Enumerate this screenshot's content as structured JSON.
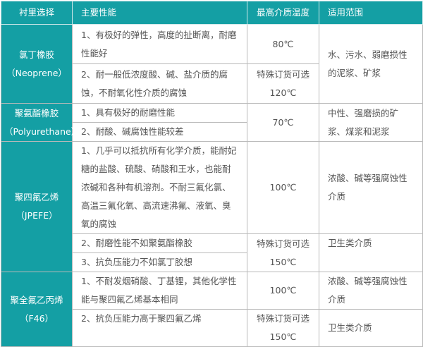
{
  "header": {
    "lining": "衬里选择",
    "properties": "主要性能",
    "max_temp": "最高介质温度",
    "application": "适用范围"
  },
  "rows": [
    {
      "name": "氯丁橡胶",
      "code": "（Neoprene）",
      "props": [
        "1、有极好的弹性，高度的扯断离，耐磨性能好",
        "2、耐一般低浓度酸、碱、盐介质的腐蚀，不耐氧化性介质的腐蚀"
      ],
      "temp1": "80℃",
      "temp2_note": "特殊订货可选",
      "temp2": "120℃",
      "app": "水、污水、弱磨损性的泥浆、矿浆"
    },
    {
      "name": "聚氨酯橡胶",
      "code": "（Polyurethane）",
      "props": [
        "1、具有极好的耐磨性能",
        "2、耐酸、碱腐蚀性能较差"
      ],
      "temp1": "70℃",
      "app": "中性、强磨损的矿浆、煤浆和泥浆"
    },
    {
      "name": "聚四氟乙烯",
      "code": "（JPEFE）",
      "props": [
        "1、几乎可以抵抗所有化学介质，能耐妃糖的盐酸、硫酸、硝酸和王水，也能耐浓碱和各种有机溶剂。不耐三氟化氯、高温三氟化氧、高流速沸氟、液氧、臭氧的腐蚀",
        "2、耐磨性能不如聚氨酯橡胶",
        "3、抗负压能力不如氯丁胶想"
      ],
      "temp1": "100℃",
      "temp2_note": "特殊订货可选",
      "temp2": "150℃",
      "app": "浓酸、碱等强腐蚀性介质",
      "app2": "卫生类介质"
    },
    {
      "name": "聚全氟乙丙烯",
      "code": "（F46）",
      "props": [
        "1、不耐发烟硝酸、丁基锂，其他化学性能与聚四氟乙烯基本相同",
        "2、抗负压能力高于聚四氟乙烯"
      ],
      "temp1": "100℃",
      "temp2_note": "特殊订货可选",
      "temp2": "150℃",
      "app": "浓酸、碱等强腐蚀性介质",
      "app2": "卫生类介质"
    }
  ],
  "colors": {
    "accent": "#149fa4",
    "border": "#b9b9b9",
    "text": "#555555"
  }
}
